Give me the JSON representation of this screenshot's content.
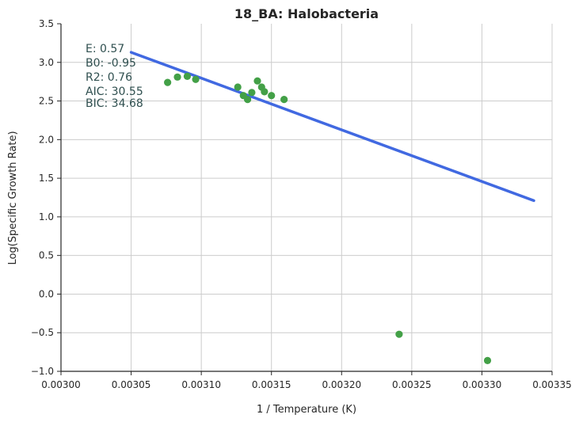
{
  "chart_data": {
    "type": "scatter",
    "title": "18_BA: Halobacteria",
    "xlabel": "1 / Temperature (K)",
    "ylabel": "Log(Specific Growth Rate)",
    "xlim": [
      0.003,
      0.00335
    ],
    "ylim": [
      -1.0,
      3.5
    ],
    "x_ticks": [
      0.003,
      0.00305,
      0.0031,
      0.00315,
      0.0032,
      0.00325,
      0.0033,
      0.00335
    ],
    "x_tick_labels": [
      "0.00300",
      "0.00305",
      "0.00310",
      "0.00315",
      "0.00320",
      "0.00325",
      "0.00330",
      "0.00335"
    ],
    "y_ticks": [
      -1.0,
      -0.5,
      0.0,
      0.5,
      1.0,
      1.5,
      2.0,
      2.5,
      3.0,
      3.5
    ],
    "y_tick_labels": [
      "−1.0",
      "−0.5",
      "0.0",
      "0.5",
      "1.0",
      "1.5",
      "2.0",
      "2.5",
      "3.0",
      "3.5"
    ],
    "grid": true,
    "points": [
      {
        "x": 0.003076,
        "y": 2.74
      },
      {
        "x": 0.003083,
        "y": 2.81
      },
      {
        "x": 0.00309,
        "y": 2.82
      },
      {
        "x": 0.003096,
        "y": 2.78
      },
      {
        "x": 0.003126,
        "y": 2.68
      },
      {
        "x": 0.00313,
        "y": 2.57
      },
      {
        "x": 0.003133,
        "y": 2.52
      },
      {
        "x": 0.003136,
        "y": 2.61
      },
      {
        "x": 0.00314,
        "y": 2.76
      },
      {
        "x": 0.003143,
        "y": 2.68
      },
      {
        "x": 0.003145,
        "y": 2.62
      },
      {
        "x": 0.00315,
        "y": 2.57
      },
      {
        "x": 0.003159,
        "y": 2.52
      },
      {
        "x": 0.003241,
        "y": -0.52
      },
      {
        "x": 0.003304,
        "y": -0.86
      }
    ],
    "fit_line": {
      "x": [
        0.00305,
        0.003337
      ],
      "y": [
        3.13,
        1.21
      ]
    },
    "annotations": [
      "E:  0.57",
      "B0:  -0.95",
      "R2:  0.76",
      "AIC: 30.55",
      "BIC: 34.68"
    ],
    "colors": {
      "points": "#43a047",
      "fit_line": "#4169e1",
      "grid": "#cccccc",
      "axes": "#262626",
      "annotation": "#2f4f4f"
    }
  }
}
